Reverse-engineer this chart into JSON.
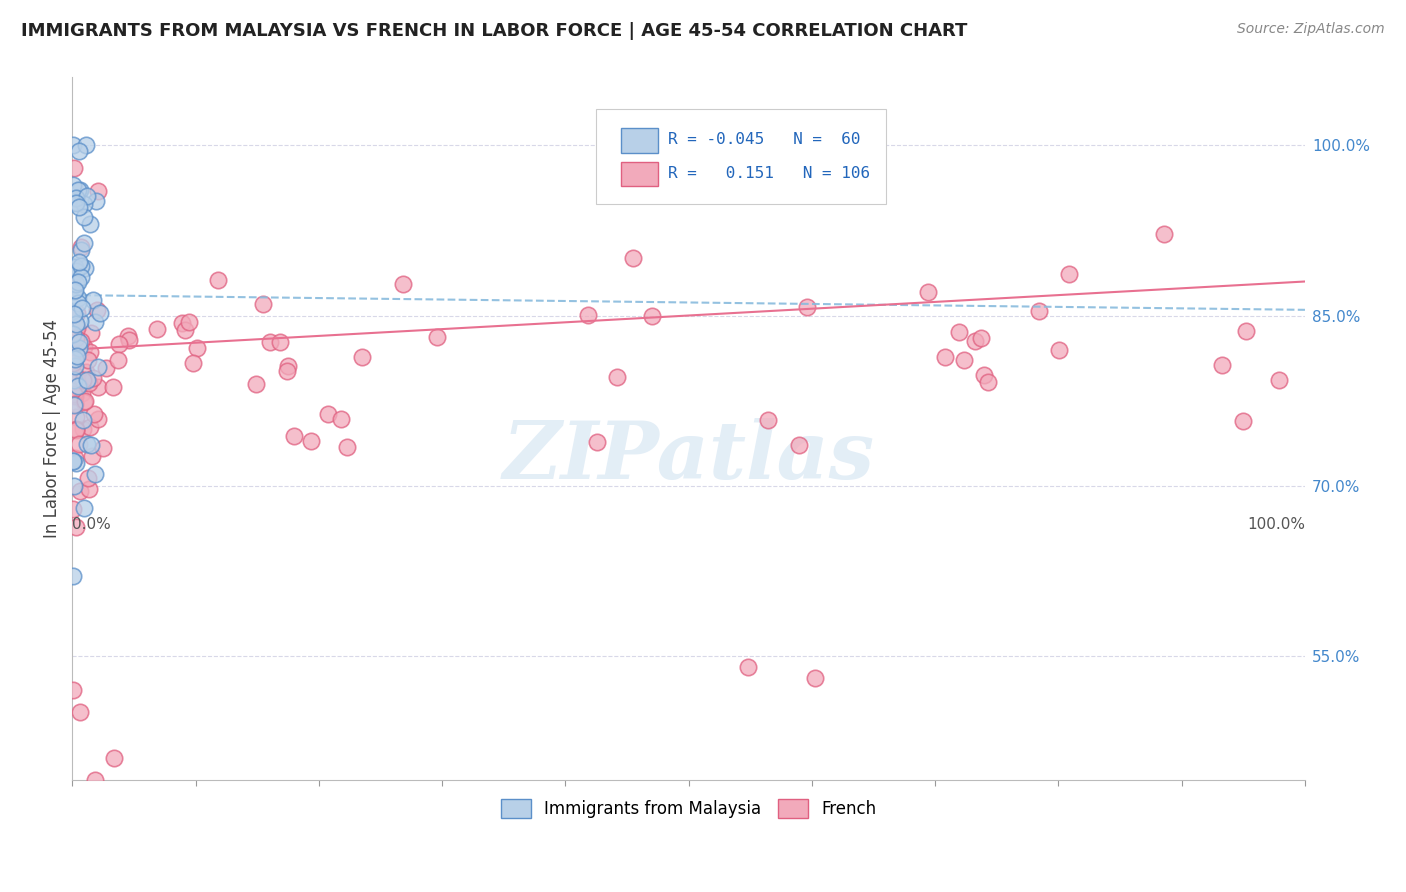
{
  "title": "IMMIGRANTS FROM MALAYSIA VS FRENCH IN LABOR FORCE | AGE 45-54 CORRELATION CHART",
  "source": "Source: ZipAtlas.com",
  "ylabel": "In Labor Force | Age 45-54",
  "right_yticks": [
    1.0,
    0.85,
    0.7,
    0.55
  ],
  "right_yticklabels": [
    "100.0%",
    "85.0%",
    "70.0%",
    "55.0%"
  ],
  "watermark": "ZIPatlas",
  "legend_r_malaysia": "-0.045",
  "legend_n_malaysia": "60",
  "legend_r_french": "0.151",
  "legend_n_french": "106",
  "malaysia_fill": "#b8d0e8",
  "malaysia_edge": "#5b8fc9",
  "french_fill": "#f2aabb",
  "french_edge": "#e06080",
  "trend_malaysia_color": "#88bbdd",
  "trend_french_color": "#e87090",
  "grid_color": "#d8d8e8",
  "background_color": "#ffffff",
  "ylim_low": 0.44,
  "ylim_high": 1.06
}
